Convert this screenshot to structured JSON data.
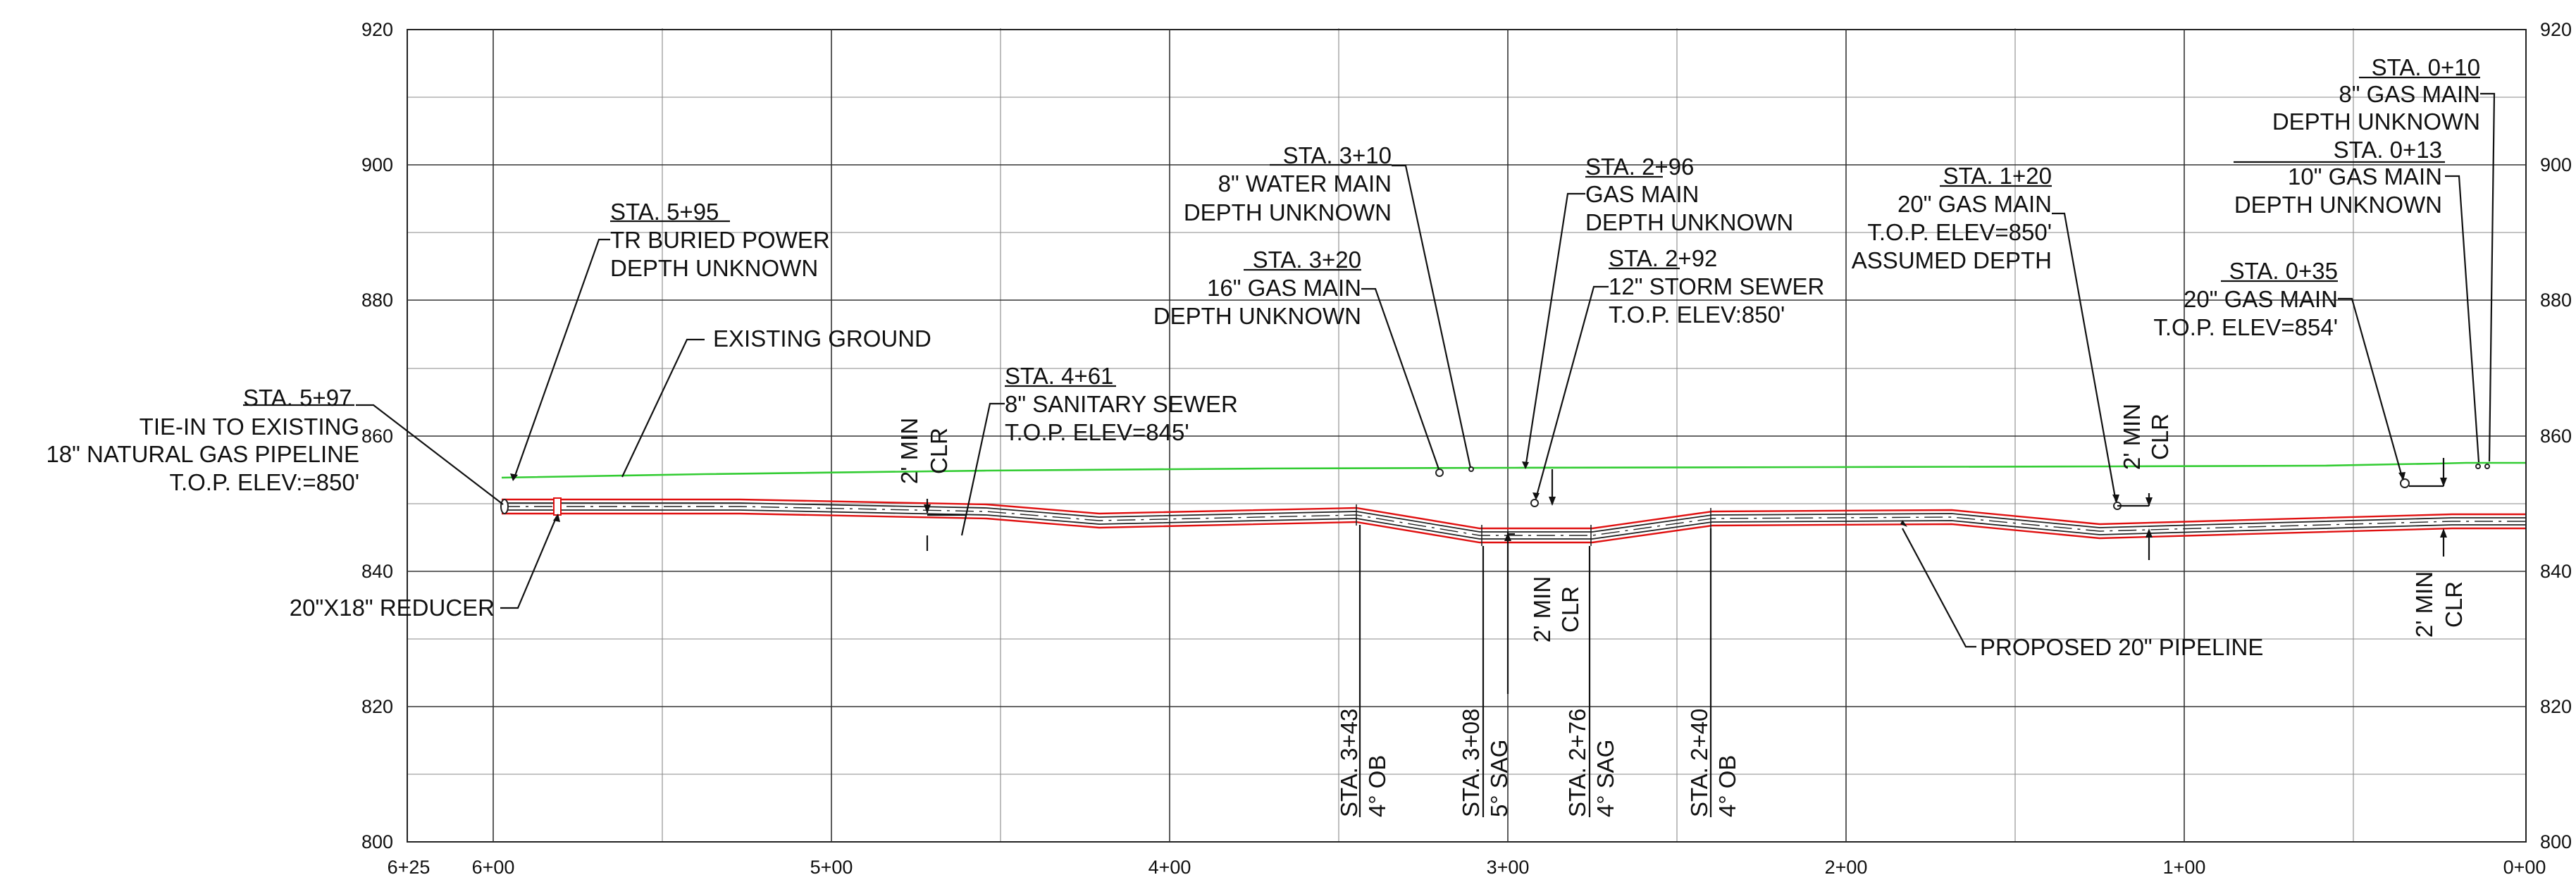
{
  "axis": {
    "y_ticks": [
      "920",
      "900",
      "880",
      "860",
      "840",
      "820",
      "800"
    ],
    "x_ticks": [
      "6+25",
      "6+00",
      "5+00",
      "4+00",
      "3+00",
      "2+00",
      "1+00",
      "0+00"
    ]
  },
  "callouts": {
    "existing_ground": "EXISTING GROUND",
    "proposed_pipeline": "PROPOSED 20\" PIPELINE",
    "reducer": "20\"X18\" REDUCER",
    "tie_in": {
      "station": "STA. 5+97",
      "line1": "TIE-IN TO EXISTING",
      "line2": "18\" NATURAL GAS PIPELINE",
      "line3": "T.O.P. ELEV:=850'"
    },
    "buried_power": {
      "station": "STA. 5+95",
      "line1": "TR BURIED POWER",
      "line2": "DEPTH UNKNOWN"
    },
    "sanitary_sewer": {
      "station": "STA. 4+61",
      "line1": "8\" SANITARY SEWER",
      "line2": "T.O.P. ELEV=845'"
    },
    "water_main": {
      "station": "STA. 3+10",
      "line1": "8\" WATER MAIN",
      "line2": "DEPTH UNKNOWN"
    },
    "gas_main_16": {
      "station": "STA. 3+20",
      "line1": "16\" GAS MAIN",
      "line2": "DEPTH UNKNOWN"
    },
    "gas_main_296": {
      "station": "STA. 2+96",
      "line1": "GAS MAIN",
      "line2": "DEPTH UNKNOWN"
    },
    "storm_sewer": {
      "station": "STA. 2+92",
      "line1": "12\" STORM SEWER",
      "line2": "T.O.P. ELEV:850'"
    },
    "gas_main_20_120": {
      "station": "STA. 1+20",
      "line1": "20\" GAS MAIN",
      "line2": "T.O.P. ELEV=850'",
      "line3": "ASSUMED DEPTH"
    },
    "gas_main_20_035": {
      "station": "STA. 0+35",
      "line1": "20\" GAS MAIN",
      "line2": "T.O.P. ELEV=854'"
    },
    "gas_main_8": {
      "station": "STA. 0+10",
      "line1": "8\" GAS MAIN",
      "line2": "DEPTH UNKNOWN"
    },
    "gas_main_10": {
      "station": "STA. 0+13",
      "line1": "10\" GAS MAIN",
      "line2": "DEPTH UNKNOWN"
    }
  },
  "clearances": {
    "label_line1": "2' MIN",
    "label_line2": "CLR"
  },
  "bends": [
    {
      "station": "STA. 3+43",
      "angle": "4° OB"
    },
    {
      "station": "STA. 3+08",
      "angle": "5° SAG"
    },
    {
      "station": "STA. 2+76",
      "angle": "4° SAG"
    },
    {
      "station": "STA. 2+40",
      "angle": "4° OB"
    }
  ],
  "colors": {
    "existing_ground": "#33cc33",
    "pipe_wall": "#e01010",
    "pipe_core": "#222222",
    "grid": "#333333"
  }
}
